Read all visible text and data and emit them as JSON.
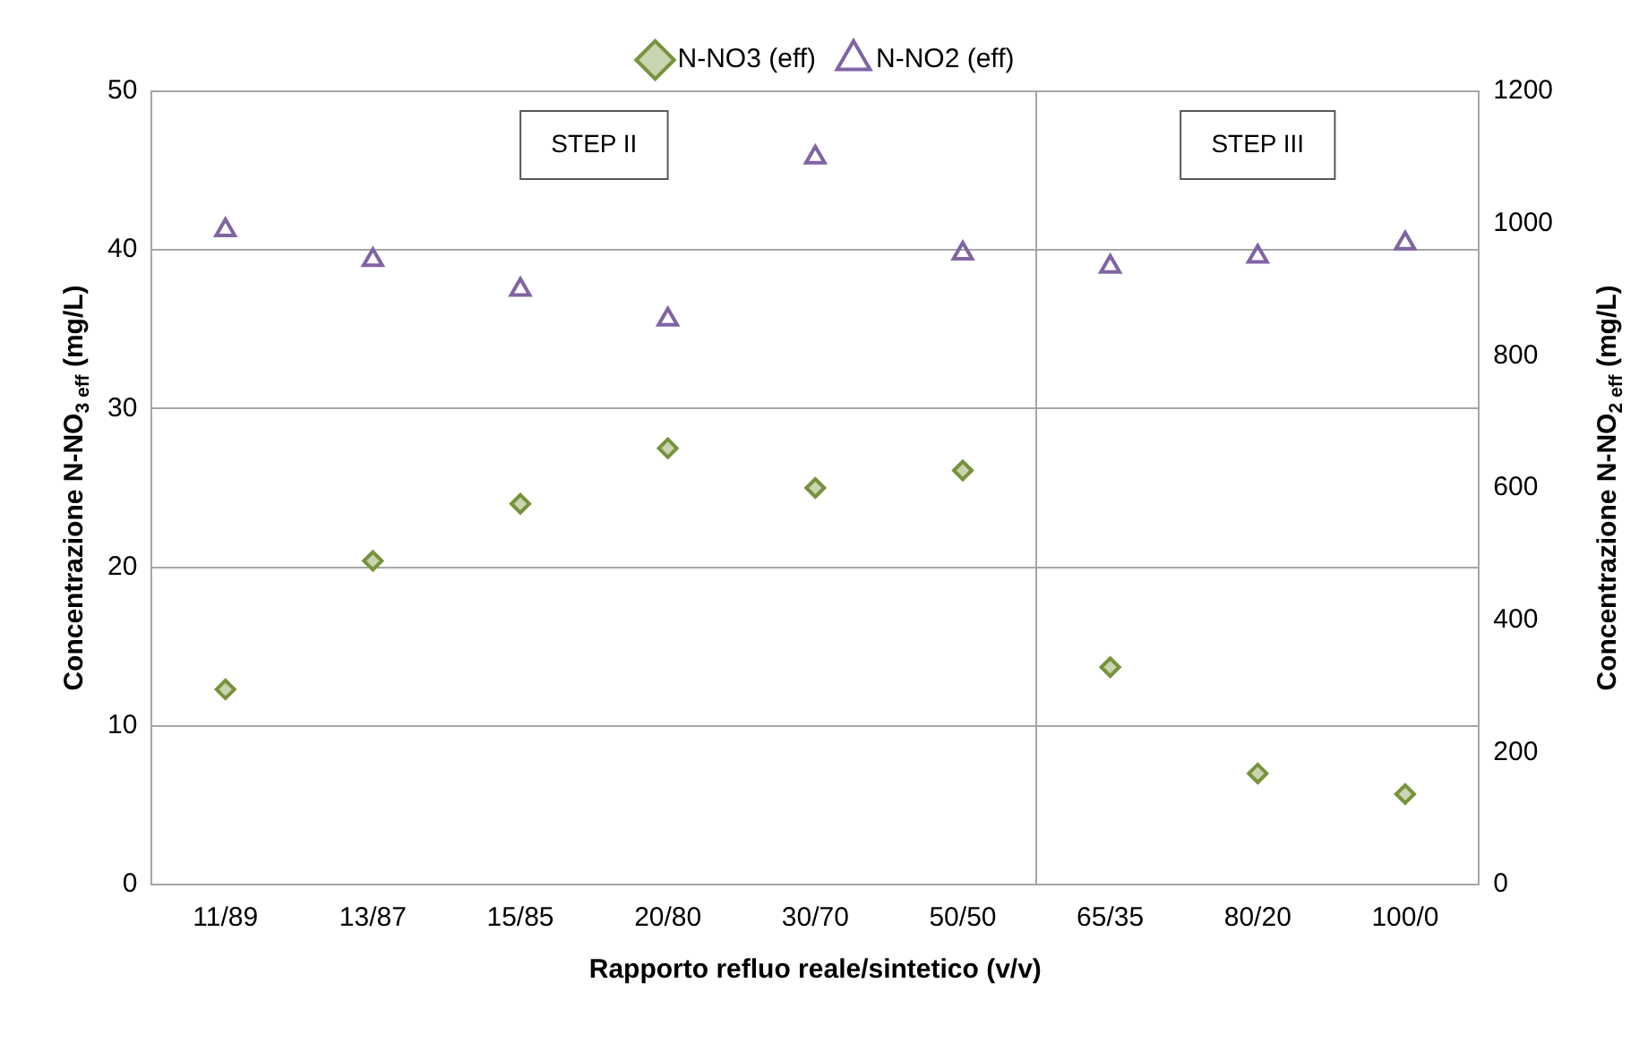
{
  "chart_data": {
    "type": "scatter",
    "xlabel": "Rapporto refluo reale/sintetico (v/v)",
    "ylabel": "Concentrazione N-NO$_{3 eff}$ (mg/L)",
    "y2label": "Concentrazione N-NO$_{2 eff}$ (mg/L)",
    "categories": [
      "11/89",
      "13/87",
      "15/85",
      "20/80",
      "30/70",
      "50/50",
      "65/35",
      "80/20",
      "100/0"
    ],
    "series": [
      {
        "name": "N-NO3 (eff)",
        "color": "#77933c",
        "marker": "diamond",
        "values": [
          12.3,
          20.4,
          24.0,
          27.5,
          25.0,
          26.1,
          13.7,
          7.0,
          5.7
        ]
      },
      {
        "name": "N-NO2 (eff)",
        "color": "#8064a2",
        "marker": "triangle",
        "axis": "y2",
        "values": [
          990,
          945,
          900,
          855,
          1100,
          955,
          935,
          950,
          970
        ]
      }
    ],
    "ylim": [
      0,
      50
    ],
    "yticks": [
      0,
      10,
      20,
      30,
      40,
      50
    ],
    "y2lim": [
      0,
      1200
    ],
    "y2ticks": [
      0,
      200,
      400,
      600,
      800,
      1000,
      1200
    ],
    "annotations": [
      "STEP II",
      "STEP III"
    ],
    "grid": "y",
    "legend": "top"
  }
}
